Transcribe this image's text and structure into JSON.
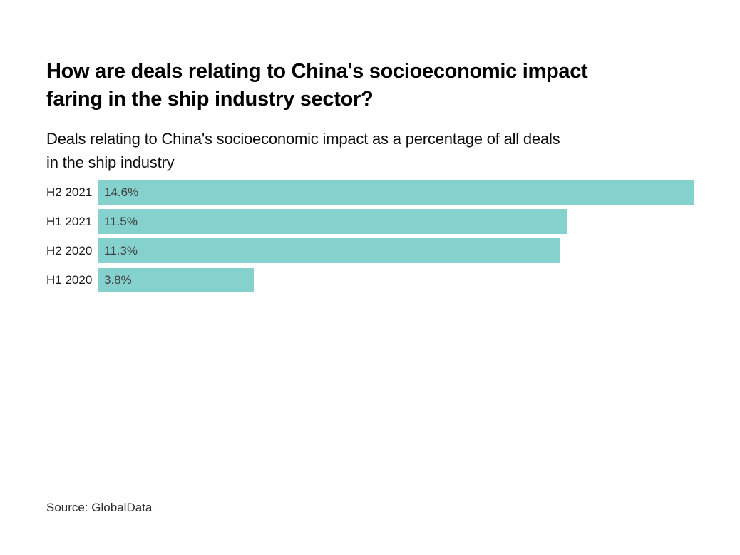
{
  "header": {
    "title": "How are deals relating to China's socioeconomic impact faring in the ship industry sector?",
    "title_lines": [
      "How are deals relating to China's socioeconomic impact",
      "faring in the ship industry sector?"
    ],
    "subtitle": "Deals relating to China's socioeconomic impact as a percentage of all deals in the ship industry",
    "subtitle_lines": [
      "Deals relating to China's socioeconomic impact as a percentage of all deals",
      "in the ship industry"
    ]
  },
  "footer": {
    "source": "Source: GlobalData"
  },
  "colors": {
    "bar": "#85d1cd",
    "rule": "#d9d9d9",
    "title_text": "#000000",
    "subtitle_text": "#0d0d0d",
    "category_label": "#1a1a1a",
    "value_label": "#3f3f3f",
    "source_text": "#2b2b2b",
    "background": "#ffffff"
  },
  "chart_data": {
    "type": "bar",
    "orientation": "horizontal",
    "title": "How are deals relating to China's socioeconomic impact faring in the ship industry sector?",
    "subtitle": "Deals relating to China's socioeconomic impact as a percentage of all deals in the ship industry",
    "source": "Source: GlobalData",
    "categories": [
      "H2 2021",
      "H1 2021",
      "H2 2020",
      "H1 2020"
    ],
    "values": [
      14.6,
      11.5,
      11.3,
      3.8
    ],
    "value_labels": [
      "14.6%",
      "11.5%",
      "11.3%",
      "3.8%"
    ],
    "xlabel": "",
    "ylabel": "",
    "xlim": [
      0,
      14.6
    ],
    "grid": false,
    "legend": "none",
    "bar_color": "#85d1cd",
    "value_labels_position": "inside-left"
  }
}
